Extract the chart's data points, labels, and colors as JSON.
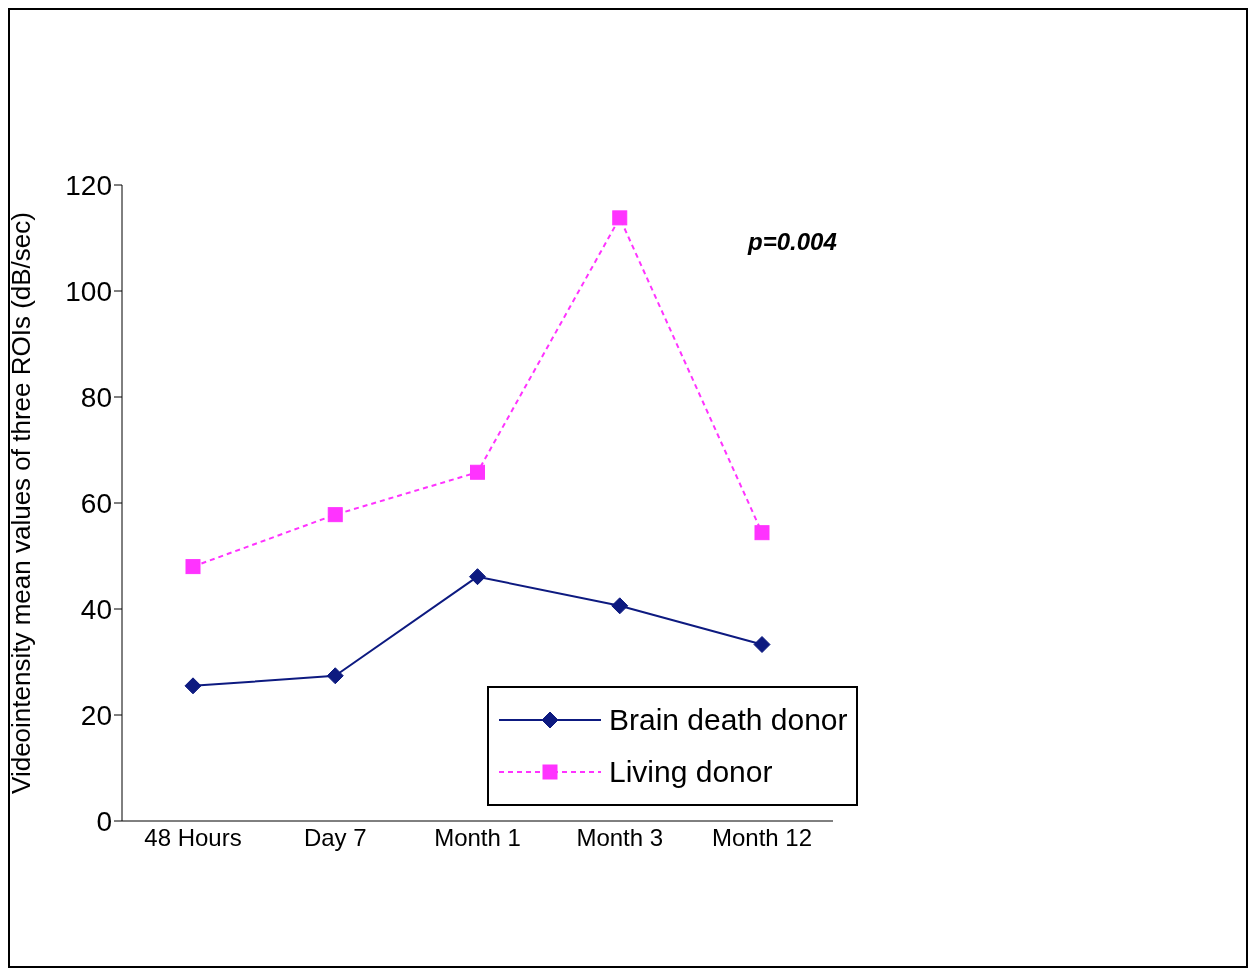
{
  "chart_data": {
    "type": "line",
    "ylabel": "Videointensity mean values of three ROIs (dB/sec)",
    "categories": [
      "48 Hours",
      "Day 7",
      "Month 1",
      "Month 3",
      "Month 12"
    ],
    "series": [
      {
        "name": "Brain death donor",
        "color": "#0d1a80",
        "values": [
          25.5,
          27.4,
          46.1,
          40.6,
          33.3
        ],
        "marker": "diamond",
        "line_style": "solid"
      },
      {
        "name": "Living donor",
        "color": "#ff33ff",
        "values": [
          48.0,
          57.8,
          65.8,
          113.8,
          54.4
        ],
        "marker": "square",
        "line_style": "dashed"
      }
    ],
    "ylim": [
      0,
      120
    ],
    "yticks": [
      0,
      20,
      40,
      60,
      80,
      100,
      120
    ],
    "grid": false,
    "legend": "bottom right",
    "annotations": [
      "p=0.004"
    ]
  }
}
